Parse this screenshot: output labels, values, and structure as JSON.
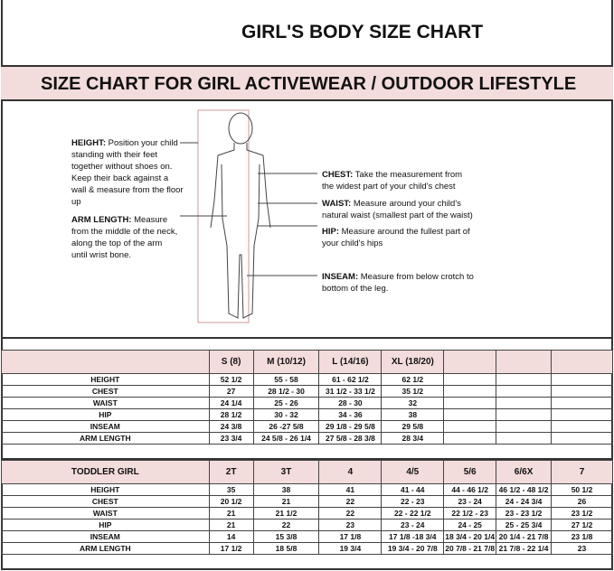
{
  "title": "GIRL'S BODY SIZE CHART",
  "subtitle": "SIZE CHART FOR GIRL ACTIVEWEAR / OUTDOOR LIFESTYLE",
  "notes": {
    "height": {
      "label": "HEIGHT:",
      "text": "Position your child standing with their feet together without shoes on. Keep their back against a wall & measure from the floor up"
    },
    "arm": {
      "label": "ARM LENGTH:",
      "text": "Measure from the middle of the neck, along the top of the arm until wrist bone."
    },
    "chest": {
      "label": "CHEST:",
      "text": "Take the measurement from the widest part of your child's chest"
    },
    "waist": {
      "label": "WAIST:",
      "text": "Measure around your child's natural waist (smallest part of the waist)"
    },
    "hip": {
      "label": "HIP:",
      "text": "Measure around the fullest part of your child's hips"
    },
    "inseam": {
      "label": "INSEAM:",
      "text": "Measure from below crotch to bottom of the leg."
    }
  },
  "girl_table": {
    "headers": [
      "",
      "S (8)",
      "M (10/12)",
      "L (14/16)",
      "XL (18/20)",
      "",
      "",
      ""
    ],
    "rows": [
      [
        "HEIGHT",
        "52 1/2",
        "55 - 58",
        "61 - 62 1/2",
        "62 1/2",
        "",
        "",
        ""
      ],
      [
        "CHEST",
        "27",
        "28 1/2 - 30",
        "31 1/2 - 33 1/2",
        "35 1/2",
        "",
        "",
        ""
      ],
      [
        "WAIST",
        "24 1/4",
        "25 - 26",
        "28 - 30",
        "32",
        "",
        "",
        ""
      ],
      [
        "HIP",
        "28 1/2",
        "30 - 32",
        "34 - 36",
        "38",
        "",
        "",
        ""
      ],
      [
        "INSEAM",
        "24 3/8",
        "26 -27 5/8",
        "29 1/8 - 29 5/8",
        "29 5/8",
        "",
        "",
        ""
      ],
      [
        "ARM LENGTH",
        "23 3/4",
        "24 5/8 - 26 1/4",
        "27 5/8 - 28 3/8",
        "28 3/4",
        "",
        "",
        ""
      ]
    ]
  },
  "toddler_table": {
    "headers": [
      "TODDLER GIRL",
      "2T",
      "3T",
      "4",
      "4/5",
      "5/6",
      "6/6X",
      "7"
    ],
    "rows": [
      [
        "HEIGHT",
        "35",
        "38",
        "41",
        "41 - 44",
        "44 - 46 1/2",
        "46 1/2 - 48 1/2",
        "50 1/2"
      ],
      [
        "CHEST",
        "20 1/2",
        "21",
        "22",
        "22 - 23",
        "23 - 24",
        "24 - 24 3/4",
        "26"
      ],
      [
        "WAIST",
        "21",
        "21 1/2",
        "22",
        "22 - 22 1/2",
        "22 1/2 - 23",
        "23 - 23 1/2",
        "23 1/2"
      ],
      [
        "HIP",
        "21",
        "22",
        "23",
        "23 - 24",
        "24 - 25",
        "25 - 25 3/4",
        "27 1/2"
      ],
      [
        "INSEAM",
        "14",
        "15 3/8",
        "17 1/8",
        "17 1/8 -18 3/4",
        "18 3/4 - 20 1/4",
        "20 1/4 - 21 7/8",
        "23 1/8"
      ],
      [
        "ARM LENGTH",
        "17 1/2",
        "18 5/8",
        "19 3/4",
        "19 3/4 - 20 7/8",
        "20 7/8 - 21 7/8",
        "21 7/8 - 22 1/4",
        "23"
      ]
    ]
  },
  "colors": {
    "header_bg": "#f3dcdc",
    "border": "#333333"
  }
}
